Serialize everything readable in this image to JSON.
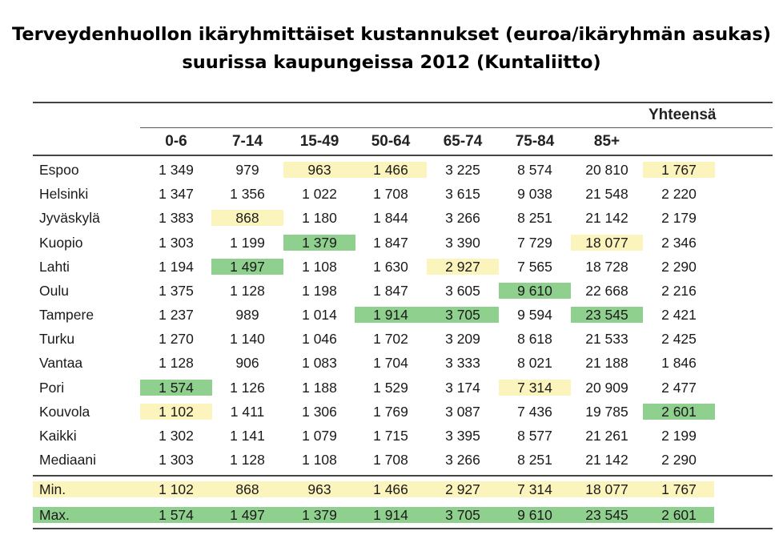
{
  "title": {
    "line1": "Terveydenhuollon ikäryhmittäiset kustannukset (euroa/ikäryhmän asukas)",
    "line2": "suurissa kaupungeissa 2012 (Kuntaliitto)"
  },
  "table": {
    "total_header": "Yhteensä",
    "columns": [
      "0-6",
      "7-14",
      "15-49",
      "50-64",
      "65-74",
      "75-84",
      "85+"
    ],
    "rows": [
      {
        "name": "Espoo",
        "values": [
          "1 349",
          "979",
          "963",
          "1 466",
          "3 225",
          "8 574",
          "20 810",
          "1 767"
        ],
        "highlight": [
          "",
          "",
          "y",
          "y",
          "",
          "",
          "",
          "y"
        ]
      },
      {
        "name": "Helsinki",
        "values": [
          "1 347",
          "1 356",
          "1 022",
          "1 708",
          "3 615",
          "9 038",
          "21 548",
          "2 220"
        ],
        "highlight": [
          "",
          "",
          "",
          "",
          "",
          "",
          "",
          ""
        ]
      },
      {
        "name": "Jyväskylä",
        "values": [
          "1 383",
          "868",
          "1 180",
          "1 844",
          "3 266",
          "8 251",
          "21 142",
          "2 179"
        ],
        "highlight": [
          "",
          "y",
          "",
          "",
          "",
          "",
          "",
          ""
        ]
      },
      {
        "name": "Kuopio",
        "values": [
          "1 303",
          "1 199",
          "1 379",
          "1 847",
          "3 390",
          "7 729",
          "18 077",
          "2 346"
        ],
        "highlight": [
          "",
          "",
          "g",
          "",
          "",
          "",
          "y",
          ""
        ]
      },
      {
        "name": "Lahti",
        "values": [
          "1 194",
          "1 497",
          "1 108",
          "1 630",
          "2 927",
          "7 565",
          "18 728",
          "2 290"
        ],
        "highlight": [
          "",
          "g",
          "",
          "",
          "y",
          "",
          "",
          ""
        ]
      },
      {
        "name": "Oulu",
        "values": [
          "1 375",
          "1 128",
          "1 198",
          "1 847",
          "3 605",
          "9 610",
          "22 668",
          "2 216"
        ],
        "highlight": [
          "",
          "",
          "",
          "",
          "",
          "g",
          "",
          ""
        ]
      },
      {
        "name": "Tampere",
        "values": [
          "1 237",
          "989",
          "1 014",
          "1 914",
          "3 705",
          "9 594",
          "23 545",
          "2 421"
        ],
        "highlight": [
          "",
          "",
          "",
          "g",
          "g",
          "",
          "g",
          ""
        ]
      },
      {
        "name": "Turku",
        "values": [
          "1 270",
          "1 140",
          "1 046",
          "1 702",
          "3 209",
          "8 618",
          "21 533",
          "2 425"
        ],
        "highlight": [
          "",
          "",
          "",
          "",
          "",
          "",
          "",
          ""
        ]
      },
      {
        "name": "Vantaa",
        "values": [
          "1 128",
          "906",
          "1 083",
          "1 704",
          "3 333",
          "8 021",
          "21 188",
          "1 846"
        ],
        "highlight": [
          "",
          "",
          "",
          "",
          "",
          "",
          "",
          ""
        ]
      },
      {
        "name": "Pori",
        "values": [
          "1 574",
          "1 126",
          "1 188",
          "1 529",
          "3 174",
          "7 314",
          "20 909",
          "2 477"
        ],
        "highlight": [
          "g",
          "",
          "",
          "",
          "",
          "y",
          "",
          ""
        ]
      },
      {
        "name": "Kouvola",
        "values": [
          "1 102",
          "1 411",
          "1 306",
          "1 769",
          "3 087",
          "7 436",
          "19 785",
          "2 601"
        ],
        "highlight": [
          "y",
          "",
          "",
          "",
          "",
          "",
          "",
          "g"
        ]
      },
      {
        "name": "Kaikki",
        "values": [
          "1 302",
          "1 141",
          "1 079",
          "1 715",
          "3 395",
          "8 577",
          "21 261",
          "2 199"
        ],
        "highlight": [
          "",
          "",
          "",
          "",
          "",
          "",
          "",
          ""
        ]
      },
      {
        "name": "Mediaani",
        "values": [
          "1 303",
          "1 128",
          "1 108",
          "1 708",
          "3 266",
          "8 251",
          "21 142",
          "2 290"
        ],
        "highlight": [
          "",
          "",
          "",
          "",
          "",
          "",
          "",
          ""
        ]
      }
    ],
    "min_row": {
      "name": "Min.",
      "values": [
        "1 102",
        "868",
        "963",
        "1 466",
        "2 927",
        "7 314",
        "18 077",
        "1 767"
      ]
    },
    "max_row": {
      "name": "Max.",
      "values": [
        "1 574",
        "1 497",
        "1 379",
        "1 914",
        "3 705",
        "9 610",
        "23 545",
        "2 601"
      ]
    }
  },
  "colors": {
    "min_highlight": "#fbf4bd",
    "max_highlight": "#8fd08f"
  }
}
